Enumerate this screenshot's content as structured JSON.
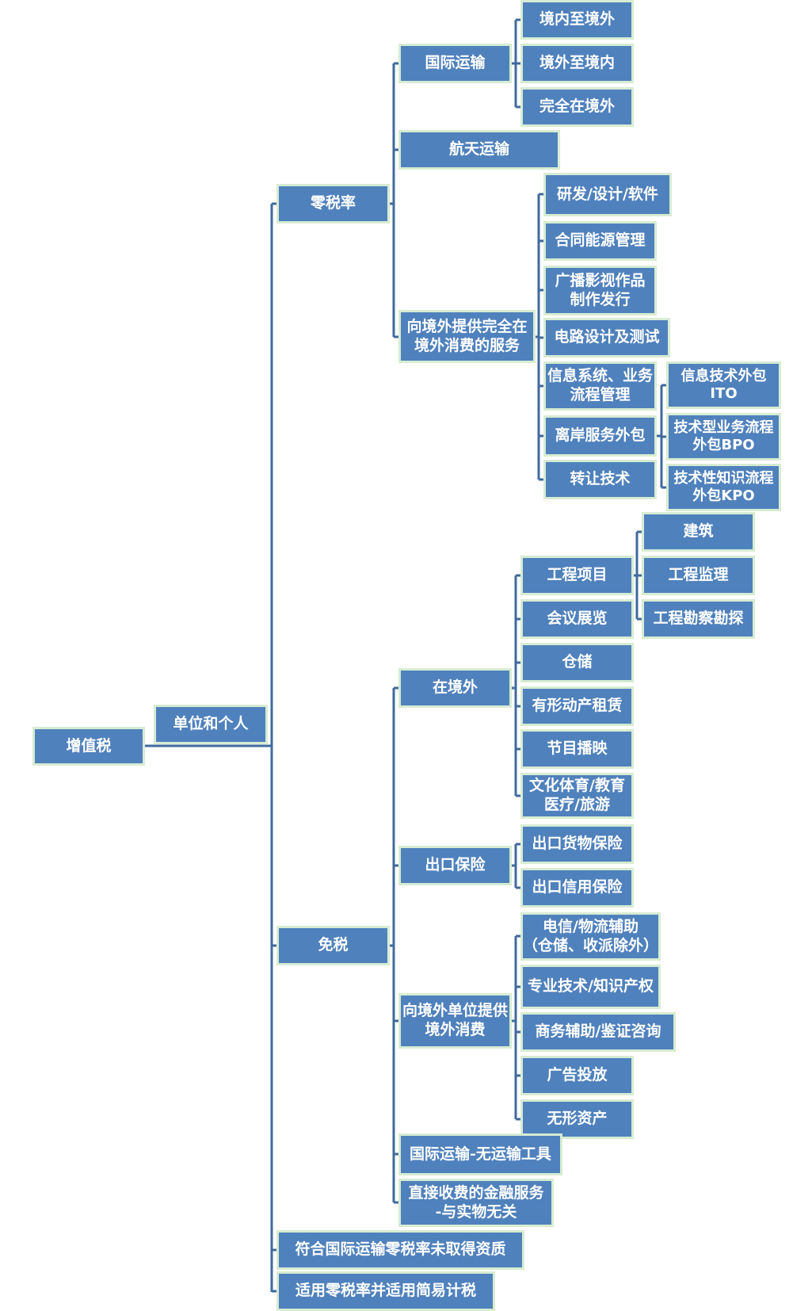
{
  "root": "增值税",
  "level1": "单位和个人",
  "zero_rate": {
    "label": "零税率",
    "intl_transport": {
      "label": "国际运输",
      "children": [
        "境内至境外",
        "境外至境内",
        "完全在境外"
      ]
    },
    "aerospace": "航天运输",
    "service_abroad": {
      "label": "向境外提供完全在境外消费的服务",
      "children": [
        "研发/设计/软件",
        "合同能源管理",
        "广播影视作品\n制作发行",
        "电路设计及测试",
        "信息系统、业务流程管理",
        "离岸服务外包",
        "转让技术"
      ],
      "outsourcing": [
        "信息技术外包ITO",
        "技术型业务流程外包BPO",
        "技术性知识流程外包KPO"
      ]
    }
  },
  "exempt": {
    "label": "免税",
    "overseas": {
      "label": "在境外",
      "children": [
        "工程项目",
        "会议展览",
        "仓储",
        "有形动产租赁",
        "节目播映",
        "文化体育/教育\n医疗/旅游"
      ],
      "engineering": [
        "建筑",
        "工程监理",
        "工程勘察勘探"
      ]
    },
    "export_insurance": {
      "label": "出口保险",
      "children": [
        "出口货物保险",
        "出口信用保险"
      ]
    },
    "foreign_units": {
      "label": "向境外单位提供境外消费",
      "children": [
        "电信/物流辅助\n（仓储、收派除外）",
        "专业技术/知识产权",
        "商务辅助/鉴证咨询",
        "广告投放",
        "无形资产"
      ]
    },
    "intl_no_tools": "国际运输-无运输工具",
    "financial": "直接收费的金融服务\n-与实物无关"
  },
  "other": [
    "符合国际运输零税率未取得资质",
    "适用零税率并适用简易计税"
  ],
  "colors": {
    "box_fill": "#4f81bd",
    "box_border": "#d7ecd3",
    "connector": "#3f6a9c",
    "text": "#ffffff"
  }
}
